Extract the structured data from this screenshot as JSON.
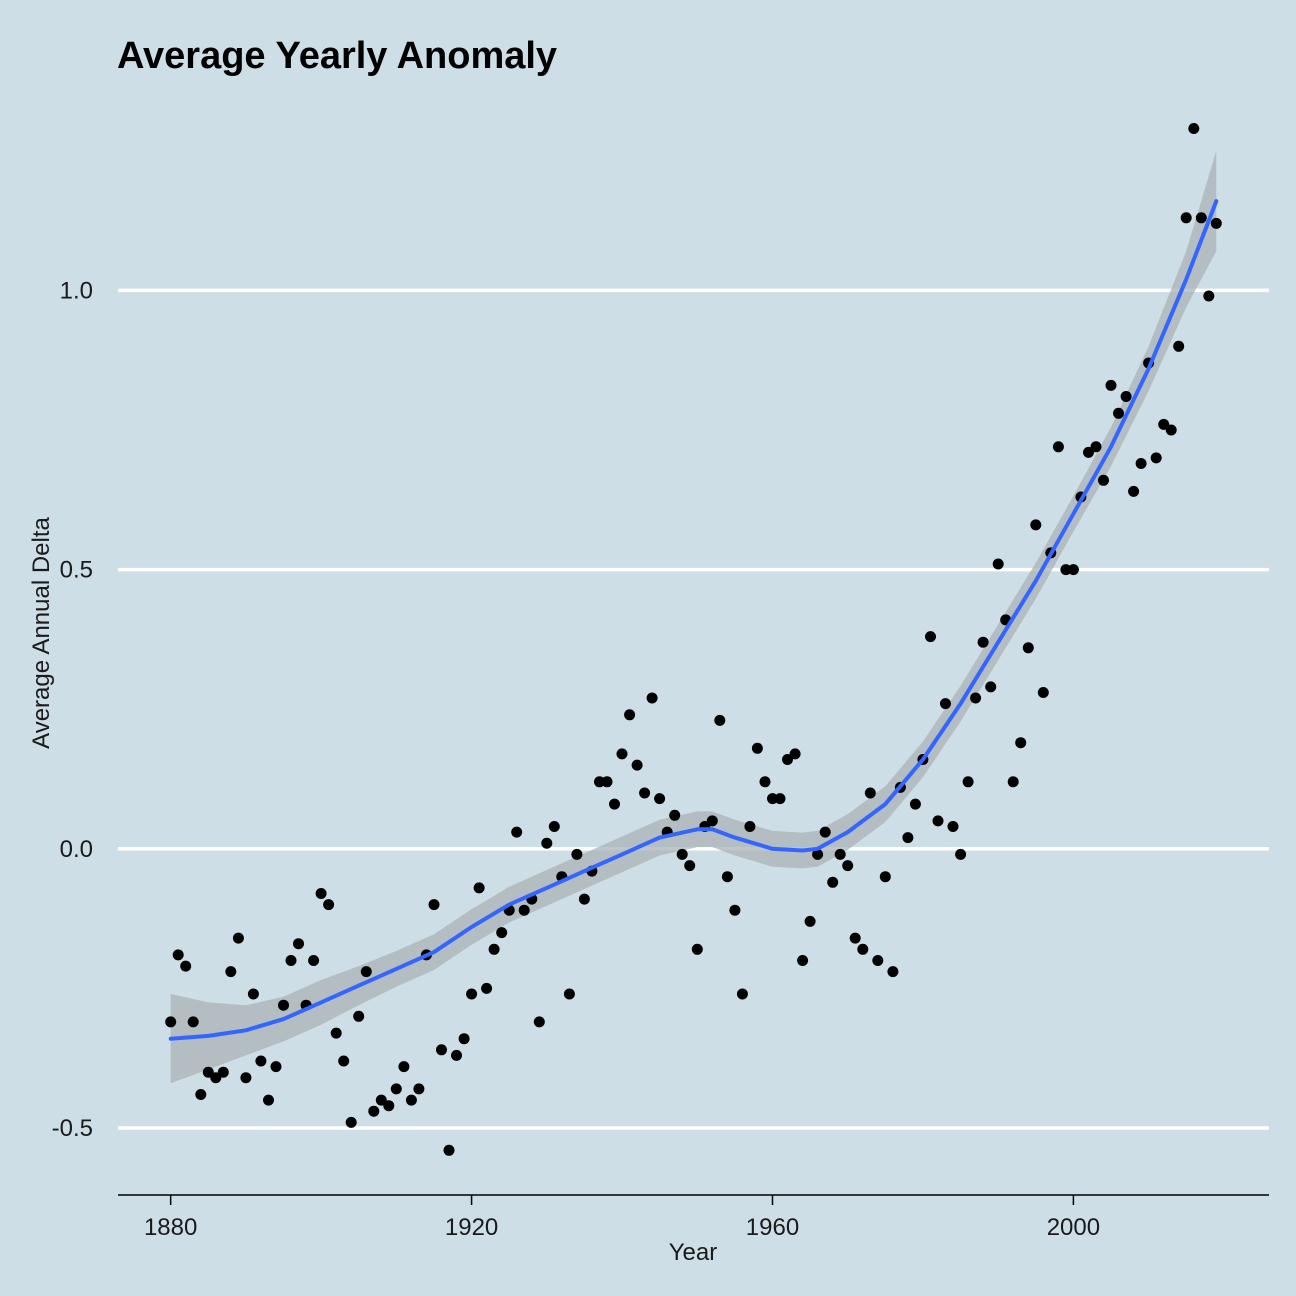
{
  "chart_data": {
    "type": "scatter",
    "title": "Average Yearly Anomaly",
    "xlabel": "Year",
    "ylabel": "Average Annual Delta",
    "xlim": [
      1873,
      2026
    ],
    "ylim": [
      -0.62,
      1.35
    ],
    "x_ticks": [
      1880,
      1920,
      1960,
      2000
    ],
    "y_ticks": [
      -0.5,
      0.0,
      0.5,
      1.0
    ],
    "y_tick_labels": [
      "-0.5",
      "0.0",
      "0.5",
      "1.0"
    ],
    "grid": "horizontal major lines only",
    "colors": {
      "background": "#CDDEE6",
      "points": "#000000",
      "smooth_line": "#3366FF",
      "ribbon": "#A9B1B6",
      "grid": "#FFFFFF"
    },
    "points": {
      "x": [
        1880,
        1881,
        1882,
        1883,
        1884,
        1885,
        1886,
        1887,
        1888,
        1889,
        1890,
        1891,
        1892,
        1893,
        1894,
        1895,
        1896,
        1897,
        1898,
        1899,
        1900,
        1901,
        1902,
        1903,
        1904,
        1905,
        1906,
        1907,
        1908,
        1909,
        1910,
        1911,
        1912,
        1913,
        1914,
        1915,
        1916,
        1917,
        1918,
        1919,
        1920,
        1921,
        1922,
        1923,
        1924,
        1925,
        1926,
        1927,
        1928,
        1929,
        1930,
        1931,
        1932,
        1933,
        1934,
        1935,
        1936,
        1937,
        1938,
        1939,
        1940,
        1941,
        1942,
        1943,
        1944,
        1945,
        1946,
        1947,
        1948,
        1949,
        1950,
        1951,
        1952,
        1953,
        1954,
        1955,
        1956,
        1957,
        1958,
        1959,
        1960,
        1961,
        1962,
        1963,
        1964,
        1965,
        1966,
        1967,
        1968,
        1969,
        1970,
        1971,
        1972,
        1973,
        1974,
        1975,
        1976,
        1977,
        1978,
        1979,
        1980,
        1981,
        1982,
        1983,
        1984,
        1985,
        1986,
        1987,
        1988,
        1989,
        1990,
        1991,
        1992,
        1993,
        1994,
        1995,
        1996,
        1997,
        1998,
        1999,
        2000,
        2001,
        2002,
        2003,
        2004,
        2005,
        2006,
        2007,
        2008,
        2009,
        2010,
        2011,
        2012,
        2013,
        2014,
        2015,
        2016,
        2017,
        2018,
        2019
      ],
      "y": [
        -0.31,
        -0.19,
        -0.21,
        -0.31,
        -0.44,
        -0.4,
        -0.41,
        -0.4,
        -0.22,
        -0.16,
        -0.41,
        -0.26,
        -0.38,
        -0.45,
        -0.39,
        -0.28,
        -0.2,
        -0.17,
        -0.28,
        -0.2,
        -0.08,
        -0.1,
        -0.33,
        -0.38,
        -0.49,
        -0.3,
        -0.22,
        -0.47,
        -0.45,
        -0.46,
        -0.43,
        -0.39,
        -0.45,
        -0.43,
        -0.19,
        -0.1,
        -0.36,
        -0.54,
        -0.37,
        -0.34,
        -0.26,
        -0.07,
        -0.25,
        -0.18,
        -0.15,
        -0.11,
        0.03,
        -0.11,
        -0.09,
        -0.31,
        0.01,
        0.04,
        -0.05,
        -0.26,
        -0.01,
        -0.09,
        -0.04,
        0.12,
        0.12,
        0.08,
        0.17,
        0.24,
        0.15,
        0.1,
        0.27,
        0.09,
        0.03,
        0.06,
        -0.01,
        -0.03,
        -0.18,
        0.04,
        0.05,
        0.23,
        -0.05,
        -0.11,
        -0.26,
        0.04,
        0.18,
        0.12,
        0.09,
        0.09,
        0.16,
        0.17,
        -0.2,
        -0.13,
        -0.01,
        0.03,
        -0.06,
        -0.01,
        -0.03,
        -0.16,
        -0.18,
        0.1,
        -0.2,
        -0.05,
        -0.22,
        0.11,
        0.02,
        0.08,
        0.16,
        0.38,
        0.05,
        0.26,
        0.04,
        -0.01,
        0.12,
        0.27,
        0.37,
        0.29,
        0.51,
        0.41,
        0.12,
        0.19,
        0.36,
        0.58,
        0.28,
        0.53,
        0.72,
        0.5,
        0.5,
        0.63,
        0.71,
        0.72,
        0.66,
        0.83,
        0.78,
        0.81,
        0.64,
        0.69,
        0.87,
        0.7,
        0.76,
        0.75,
        0.9,
        1.13,
        1.29,
        1.13,
        0.99,
        1.12
      ]
    },
    "smooth": {
      "x": [
        1880,
        1885,
        1890,
        1895,
        1900,
        1905,
        1910,
        1915,
        1920,
        1925,
        1930,
        1935,
        1940,
        1945,
        1950,
        1952,
        1955,
        1960,
        1964,
        1966,
        1970,
        1975,
        1980,
        1985,
        1990,
        1995,
        2000,
        2005,
        2010,
        2015,
        2019
      ],
      "y": [
        -0.34,
        -0.335,
        -0.325,
        -0.305,
        -0.275,
        -0.245,
        -0.215,
        -0.185,
        -0.14,
        -0.1,
        -0.07,
        -0.04,
        -0.01,
        0.02,
        0.035,
        0.035,
        0.02,
        0.0,
        -0.003,
        0.0,
        0.03,
        0.08,
        0.16,
        0.26,
        0.37,
        0.48,
        0.6,
        0.72,
        0.86,
        1.02,
        1.16
      ],
      "se": [
        0.08,
        0.06,
        0.045,
        0.04,
        0.04,
        0.035,
        0.032,
        0.032,
        0.032,
        0.032,
        0.032,
        0.032,
        0.032,
        0.032,
        0.032,
        0.032,
        0.032,
        0.032,
        0.032,
        0.032,
        0.032,
        0.032,
        0.032,
        0.032,
        0.032,
        0.032,
        0.032,
        0.035,
        0.04,
        0.05,
        0.09
      ]
    }
  }
}
